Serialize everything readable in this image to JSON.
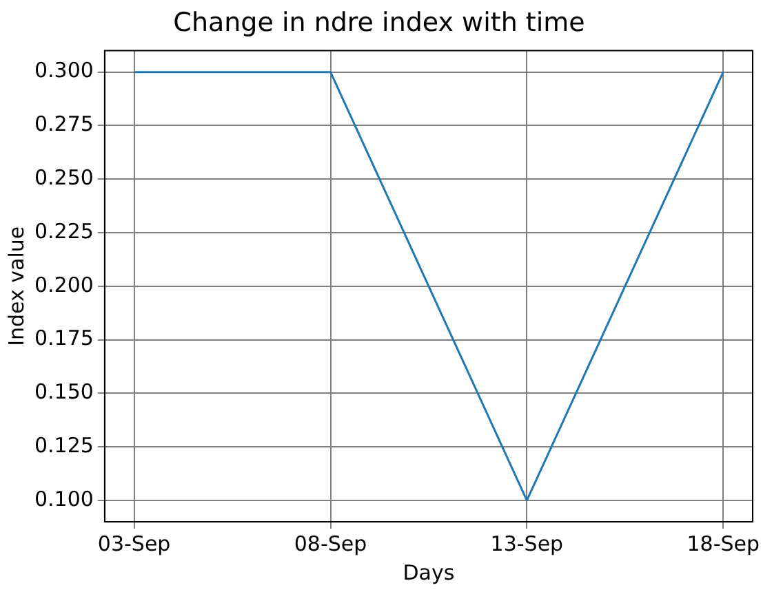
{
  "chart_data": {
    "type": "line",
    "title": "Change in ndre index with time",
    "xlabel": "Days",
    "ylabel": "Index value",
    "x": [
      "--09-03",
      "--09-08",
      "--09-13",
      "--09-18"
    ],
    "series": [
      {
        "color": "#1f77b4",
        "values": [
          0.3,
          0.3,
          0.1,
          0.3
        ]
      }
    ],
    "xlim": [
      "--09-02T06:00",
      "--09-18T18:00"
    ],
    "xticks": [
      {
        "value": "--09-03",
        "label": "03-Sep"
      },
      {
        "value": "--09-08",
        "label": "08-Sep"
      },
      {
        "value": "--09-13",
        "label": "13-Sep"
      },
      {
        "value": "--09-18",
        "label": "18-Sep"
      }
    ],
    "ylim": [
      0.09,
      0.31
    ],
    "yticks": [
      {
        "value": 0.1,
        "label": "0.100"
      },
      {
        "value": 0.125,
        "label": "0.125"
      },
      {
        "value": 0.15,
        "label": "0.150"
      },
      {
        "value": 0.175,
        "label": "0.175"
      },
      {
        "value": 0.2,
        "label": "0.200"
      },
      {
        "value": 0.225,
        "label": "0.225"
      },
      {
        "value": 0.25,
        "label": "0.250"
      },
      {
        "value": 0.275,
        "label": "0.275"
      },
      {
        "value": 0.3,
        "label": "0.300"
      }
    ],
    "grid": true,
    "legend": false,
    "marker": "none",
    "line_style": "solid"
  }
}
